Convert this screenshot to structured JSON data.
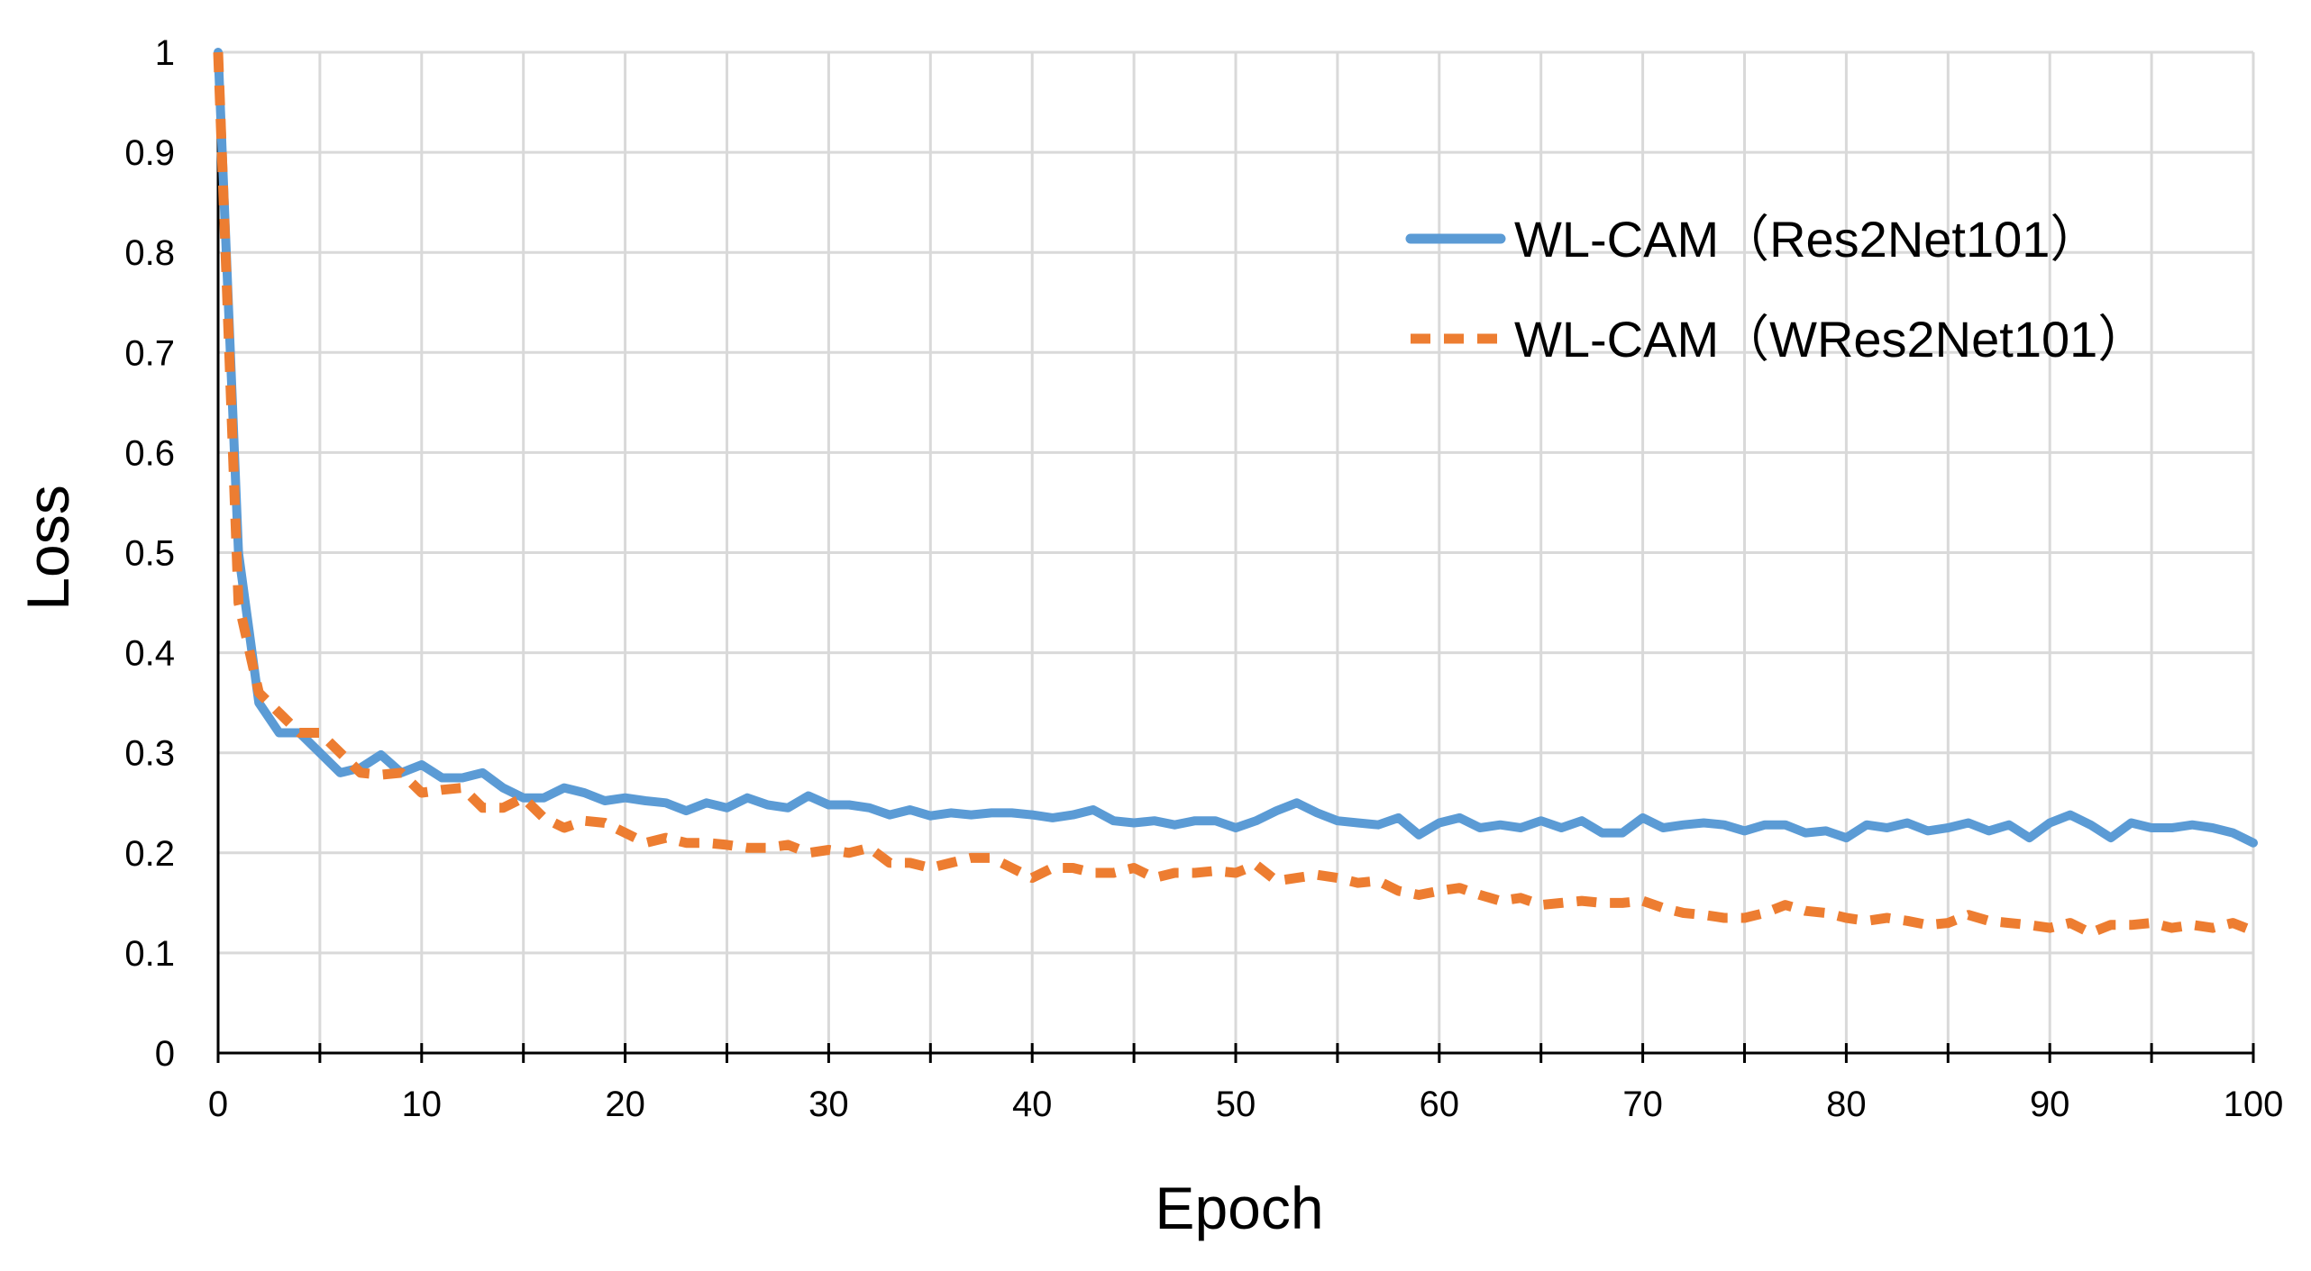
{
  "chart_data": {
    "type": "line",
    "title": "",
    "xlabel": "Epoch",
    "ylabel": "Loss",
    "xlim": [
      0,
      100
    ],
    "ylim": [
      0,
      1
    ],
    "xticks": [
      0,
      10,
      20,
      30,
      40,
      50,
      60,
      70,
      80,
      90,
      100
    ],
    "yticks": [
      0,
      0.1,
      0.2,
      0.3,
      0.4,
      0.5,
      0.6,
      0.7,
      0.8,
      0.9,
      1
    ],
    "x_minor_step": 5,
    "grid": true,
    "legend_position": "top-right",
    "x": [
      0,
      1,
      2,
      3,
      4,
      5,
      6,
      7,
      8,
      9,
      10,
      11,
      12,
      13,
      14,
      15,
      16,
      17,
      18,
      19,
      20,
      21,
      22,
      23,
      24,
      25,
      26,
      27,
      28,
      29,
      30,
      31,
      32,
      33,
      34,
      35,
      36,
      37,
      38,
      39,
      40,
      41,
      42,
      43,
      44,
      45,
      46,
      47,
      48,
      49,
      50,
      51,
      52,
      53,
      54,
      55,
      56,
      57,
      58,
      59,
      60,
      61,
      62,
      63,
      64,
      65,
      66,
      67,
      68,
      69,
      70,
      71,
      72,
      73,
      74,
      75,
      76,
      77,
      78,
      79,
      80,
      81,
      82,
      83,
      84,
      85,
      86,
      87,
      88,
      89,
      90,
      91,
      92,
      93,
      94,
      95,
      96,
      97,
      98,
      99,
      100
    ],
    "series": [
      {
        "name": "WL-CAM（Res2Net101）",
        "color": "#5B9BD5",
        "style": "solid",
        "values": [
          1.0,
          0.5,
          0.35,
          0.32,
          0.32,
          0.3,
          0.28,
          0.285,
          0.298,
          0.28,
          0.288,
          0.275,
          0.275,
          0.28,
          0.265,
          0.255,
          0.255,
          0.265,
          0.26,
          0.252,
          0.255,
          0.252,
          0.25,
          0.242,
          0.25,
          0.245,
          0.255,
          0.248,
          0.245,
          0.257,
          0.248,
          0.248,
          0.245,
          0.238,
          0.243,
          0.237,
          0.24,
          0.238,
          0.24,
          0.24,
          0.238,
          0.235,
          0.238,
          0.243,
          0.232,
          0.23,
          0.232,
          0.228,
          0.232,
          0.232,
          0.225,
          0.232,
          0.242,
          0.25,
          0.24,
          0.232,
          0.23,
          0.228,
          0.235,
          0.218,
          0.23,
          0.235,
          0.225,
          0.228,
          0.225,
          0.232,
          0.225,
          0.232,
          0.22,
          0.22,
          0.235,
          0.225,
          0.228,
          0.23,
          0.228,
          0.222,
          0.228,
          0.228,
          0.22,
          0.222,
          0.215,
          0.228,
          0.225,
          0.23,
          0.222,
          0.225,
          0.23,
          0.222,
          0.228,
          0.215,
          0.23,
          0.238,
          0.228,
          0.215,
          0.23,
          0.225,
          0.225,
          0.228,
          0.225,
          0.22,
          0.21
        ]
      },
      {
        "name": "WL-CAM（WRes2Net101）",
        "color": "#ED7D31",
        "style": "dashed",
        "values": [
          1.0,
          0.45,
          0.36,
          0.34,
          0.32,
          0.32,
          0.3,
          0.28,
          0.278,
          0.28,
          0.26,
          0.263,
          0.265,
          0.245,
          0.245,
          0.255,
          0.235,
          0.225,
          0.232,
          0.23,
          0.22,
          0.21,
          0.215,
          0.21,
          0.21,
          0.208,
          0.205,
          0.205,
          0.208,
          0.2,
          0.203,
          0.2,
          0.205,
          0.19,
          0.19,
          0.185,
          0.19,
          0.195,
          0.195,
          0.185,
          0.175,
          0.185,
          0.185,
          0.18,
          0.18,
          0.185,
          0.175,
          0.18,
          0.18,
          0.182,
          0.18,
          0.188,
          0.172,
          0.175,
          0.178,
          0.175,
          0.17,
          0.172,
          0.162,
          0.158,
          0.162,
          0.165,
          0.158,
          0.152,
          0.155,
          0.148,
          0.15,
          0.152,
          0.15,
          0.15,
          0.152,
          0.145,
          0.14,
          0.138,
          0.135,
          0.135,
          0.14,
          0.148,
          0.142,
          0.14,
          0.135,
          0.132,
          0.135,
          0.132,
          0.128,
          0.13,
          0.138,
          0.132,
          0.13,
          0.128,
          0.125,
          0.13,
          0.12,
          0.128,
          0.128,
          0.13,
          0.125,
          0.128,
          0.125,
          0.13,
          0.122
        ]
      }
    ]
  }
}
